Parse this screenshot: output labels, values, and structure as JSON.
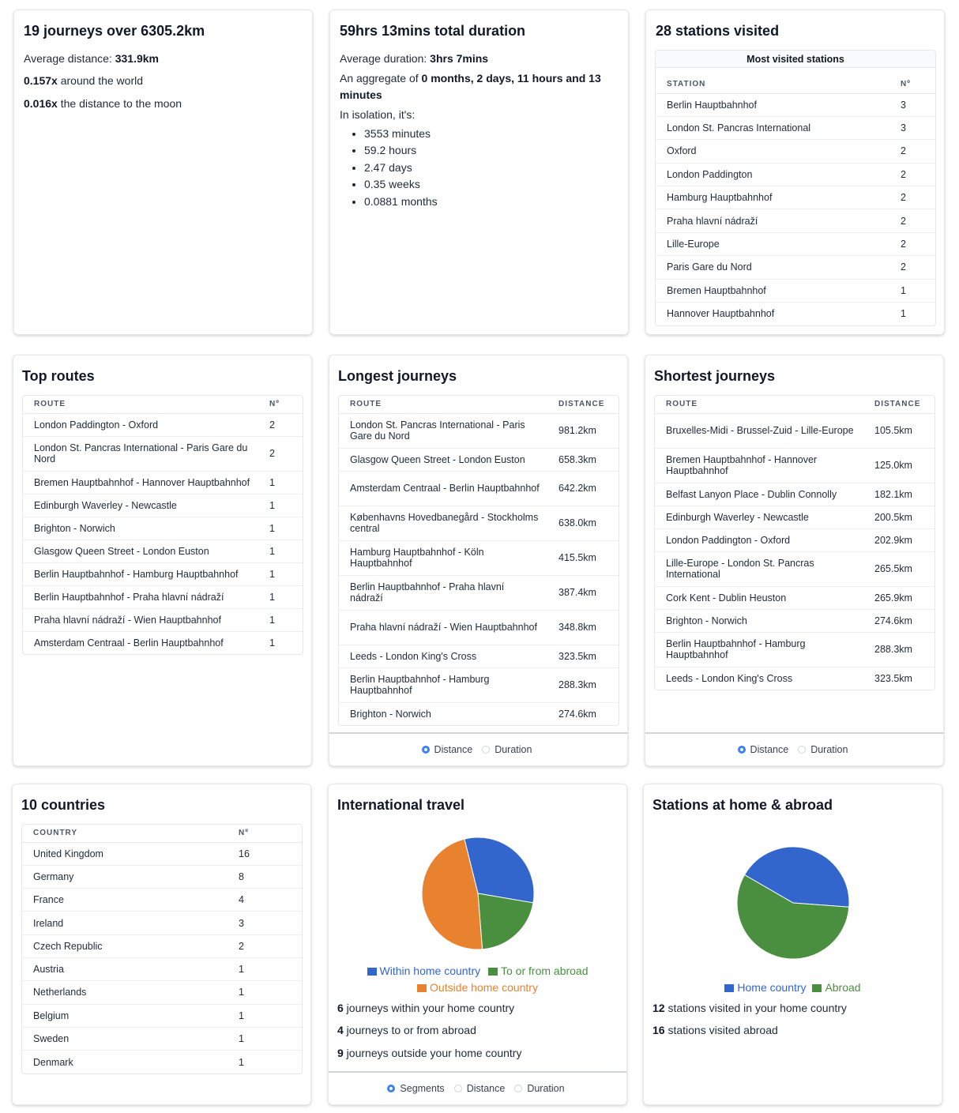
{
  "summary": {
    "title": "19 journeys over 6305.2km",
    "avg_label": "Average distance: ",
    "avg_value": "331.9km",
    "world_value": "0.157x",
    "world_label": " around the world",
    "moon_value": "0.016x",
    "moon_label": " the distance to the moon"
  },
  "duration": {
    "title": "59hrs 13mins total duration",
    "avg_label": "Average duration: ",
    "avg_value": "3hrs 7mins",
    "aggregate_label": "An aggregate of ",
    "aggregate_value": "0 months, 2 days, 11 hours and 13 minutes",
    "isolation_label": "In isolation, it's:",
    "isolation_items": [
      "3553 minutes",
      "59.2 hours",
      "2.47 days",
      "0.35 weeks",
      "0.0881 months"
    ]
  },
  "stations": {
    "title": "28 stations visited",
    "caption": "Most visited stations",
    "col_station": "STATION",
    "col_count": "Nº",
    "rows": [
      {
        "name": "Berlin Hauptbahnhof",
        "count": "3"
      },
      {
        "name": "London St. Pancras International",
        "count": "3"
      },
      {
        "name": "Oxford",
        "count": "2"
      },
      {
        "name": "London Paddington",
        "count": "2"
      },
      {
        "name": "Hamburg Hauptbahnhof",
        "count": "2"
      },
      {
        "name": "Praha hlavní nádraží",
        "count": "2"
      },
      {
        "name": "Lille-Europe",
        "count": "2"
      },
      {
        "name": "Paris Gare du Nord",
        "count": "2"
      },
      {
        "name": "Bremen Hauptbahnhof",
        "count": "1"
      },
      {
        "name": "Hannover Hauptbahnhof",
        "count": "1"
      }
    ]
  },
  "top_routes": {
    "title": "Top routes",
    "col_route": "ROUTE",
    "col_count": "Nº",
    "rows": [
      {
        "route": "London Paddington - Oxford",
        "count": "2"
      },
      {
        "route": "London St. Pancras International - Paris Gare du Nord",
        "count": "2"
      },
      {
        "route": "Bremen Hauptbahnhof - Hannover Hauptbahnhof",
        "count": "1"
      },
      {
        "route": "Edinburgh Waverley - Newcastle",
        "count": "1"
      },
      {
        "route": "Brighton - Norwich",
        "count": "1"
      },
      {
        "route": "Glasgow Queen Street - London Euston",
        "count": "1"
      },
      {
        "route": "Berlin Hauptbahnhof - Hamburg Hauptbahnhof",
        "count": "1"
      },
      {
        "route": "Berlin Hauptbahnhof - Praha hlavní nádraží",
        "count": "1"
      },
      {
        "route": "Praha hlavní nádraží - Wien Hauptbahnhof",
        "count": "1"
      },
      {
        "route": "Amsterdam Centraal - Berlin Hauptbahnhof",
        "count": "1"
      }
    ]
  },
  "longest": {
    "title": "Longest journeys",
    "col_route": "ROUTE",
    "col_distance": "DISTANCE",
    "rows": [
      {
        "route": "London St. Pancras International - Paris Gare du Nord",
        "distance": "981.2km"
      },
      {
        "route": "Glasgow Queen Street - London Euston",
        "distance": "658.3km"
      },
      {
        "route": "Amsterdam Centraal - Berlin Hauptbahnhof",
        "distance": "642.2km"
      },
      {
        "route": "Københavns Hovedbanegård - Stockholms central",
        "distance": "638.0km"
      },
      {
        "route": "Hamburg Hauptbahnhof - Köln Hauptbahnhof",
        "distance": "415.5km"
      },
      {
        "route": "Berlin Hauptbahnhof - Praha hlavní nádraží",
        "distance": "387.4km"
      },
      {
        "route": "Praha hlavní nádraží - Wien Hauptbahnhof",
        "distance": "348.8km"
      },
      {
        "route": "Leeds - London King's Cross",
        "distance": "323.5km"
      },
      {
        "route": "Berlin Hauptbahnhof - Hamburg Hauptbahnhof",
        "distance": "288.3km"
      },
      {
        "route": "Brighton - Norwich",
        "distance": "274.6km"
      }
    ],
    "radio_distance": "Distance",
    "radio_duration": "Duration"
  },
  "shortest": {
    "title": "Shortest journeys",
    "col_route": "ROUTE",
    "col_distance": "DISTANCE",
    "rows": [
      {
        "route": "Bruxelles-Midi - Brussel-Zuid - Lille-Europe",
        "distance": "105.5km"
      },
      {
        "route": "Bremen Hauptbahnhof - Hannover Hauptbahnhof",
        "distance": "125.0km"
      },
      {
        "route": "Belfast Lanyon Place - Dublin Connolly",
        "distance": "182.1km"
      },
      {
        "route": "Edinburgh Waverley - Newcastle",
        "distance": "200.5km"
      },
      {
        "route": "London Paddington - Oxford",
        "distance": "202.9km"
      },
      {
        "route": "Lille-Europe - London St. Pancras International",
        "distance": "265.5km"
      },
      {
        "route": "Cork Kent - Dublin Heuston",
        "distance": "265.9km"
      },
      {
        "route": "Brighton - Norwich",
        "distance": "274.6km"
      },
      {
        "route": "Berlin Hauptbahnhof - Hamburg Hauptbahnhof",
        "distance": "288.3km"
      },
      {
        "route": "Leeds - London King's Cross",
        "distance": "323.5km"
      }
    ],
    "radio_distance": "Distance",
    "radio_duration": "Duration"
  },
  "countries": {
    "title": "10 countries",
    "col_country": "COUNTRY",
    "col_count": "Nº",
    "rows": [
      {
        "name": "United Kingdom",
        "count": "16"
      },
      {
        "name": "Germany",
        "count": "8"
      },
      {
        "name": "France",
        "count": "4"
      },
      {
        "name": "Ireland",
        "count": "3"
      },
      {
        "name": "Czech Republic",
        "count": "2"
      },
      {
        "name": "Austria",
        "count": "1"
      },
      {
        "name": "Netherlands",
        "count": "1"
      },
      {
        "name": "Belgium",
        "count": "1"
      },
      {
        "name": "Sweden",
        "count": "1"
      },
      {
        "name": "Denmark",
        "count": "1"
      }
    ]
  },
  "international": {
    "title": "International travel",
    "legend": [
      "Within home country",
      "To or from abroad",
      "Outside home country"
    ],
    "stat1_value": "6",
    "stat1_label": " journeys within your home country",
    "stat2_value": "4",
    "stat2_label": " journeys to or from abroad",
    "stat3_value": "9",
    "stat3_label": " journeys outside your home country",
    "radio_segments": "Segments",
    "radio_distance": "Distance",
    "radio_duration": "Duration"
  },
  "home_abroad": {
    "title": "Stations at home & abroad",
    "legend": [
      "Home country",
      "Abroad"
    ],
    "stat1_value": "12",
    "stat1_label": " stations visited in your home country",
    "stat2_value": "16",
    "stat2_label": " stations visited abroad"
  },
  "colors": {
    "blue": "#3366cc",
    "green": "#4a8f3f",
    "orange": "#e8822f"
  },
  "chart_data": [
    {
      "type": "pie",
      "categories": [
        "Within home country",
        "To or from abroad",
        "Outside home country"
      ],
      "values": [
        6,
        4,
        9
      ],
      "colors": [
        "#3366cc",
        "#4a8f3f",
        "#e8822f"
      ]
    },
    {
      "type": "pie",
      "categories": [
        "Home country",
        "Abroad"
      ],
      "values": [
        12,
        16
      ],
      "colors": [
        "#3366cc",
        "#4a8f3f"
      ]
    }
  ]
}
